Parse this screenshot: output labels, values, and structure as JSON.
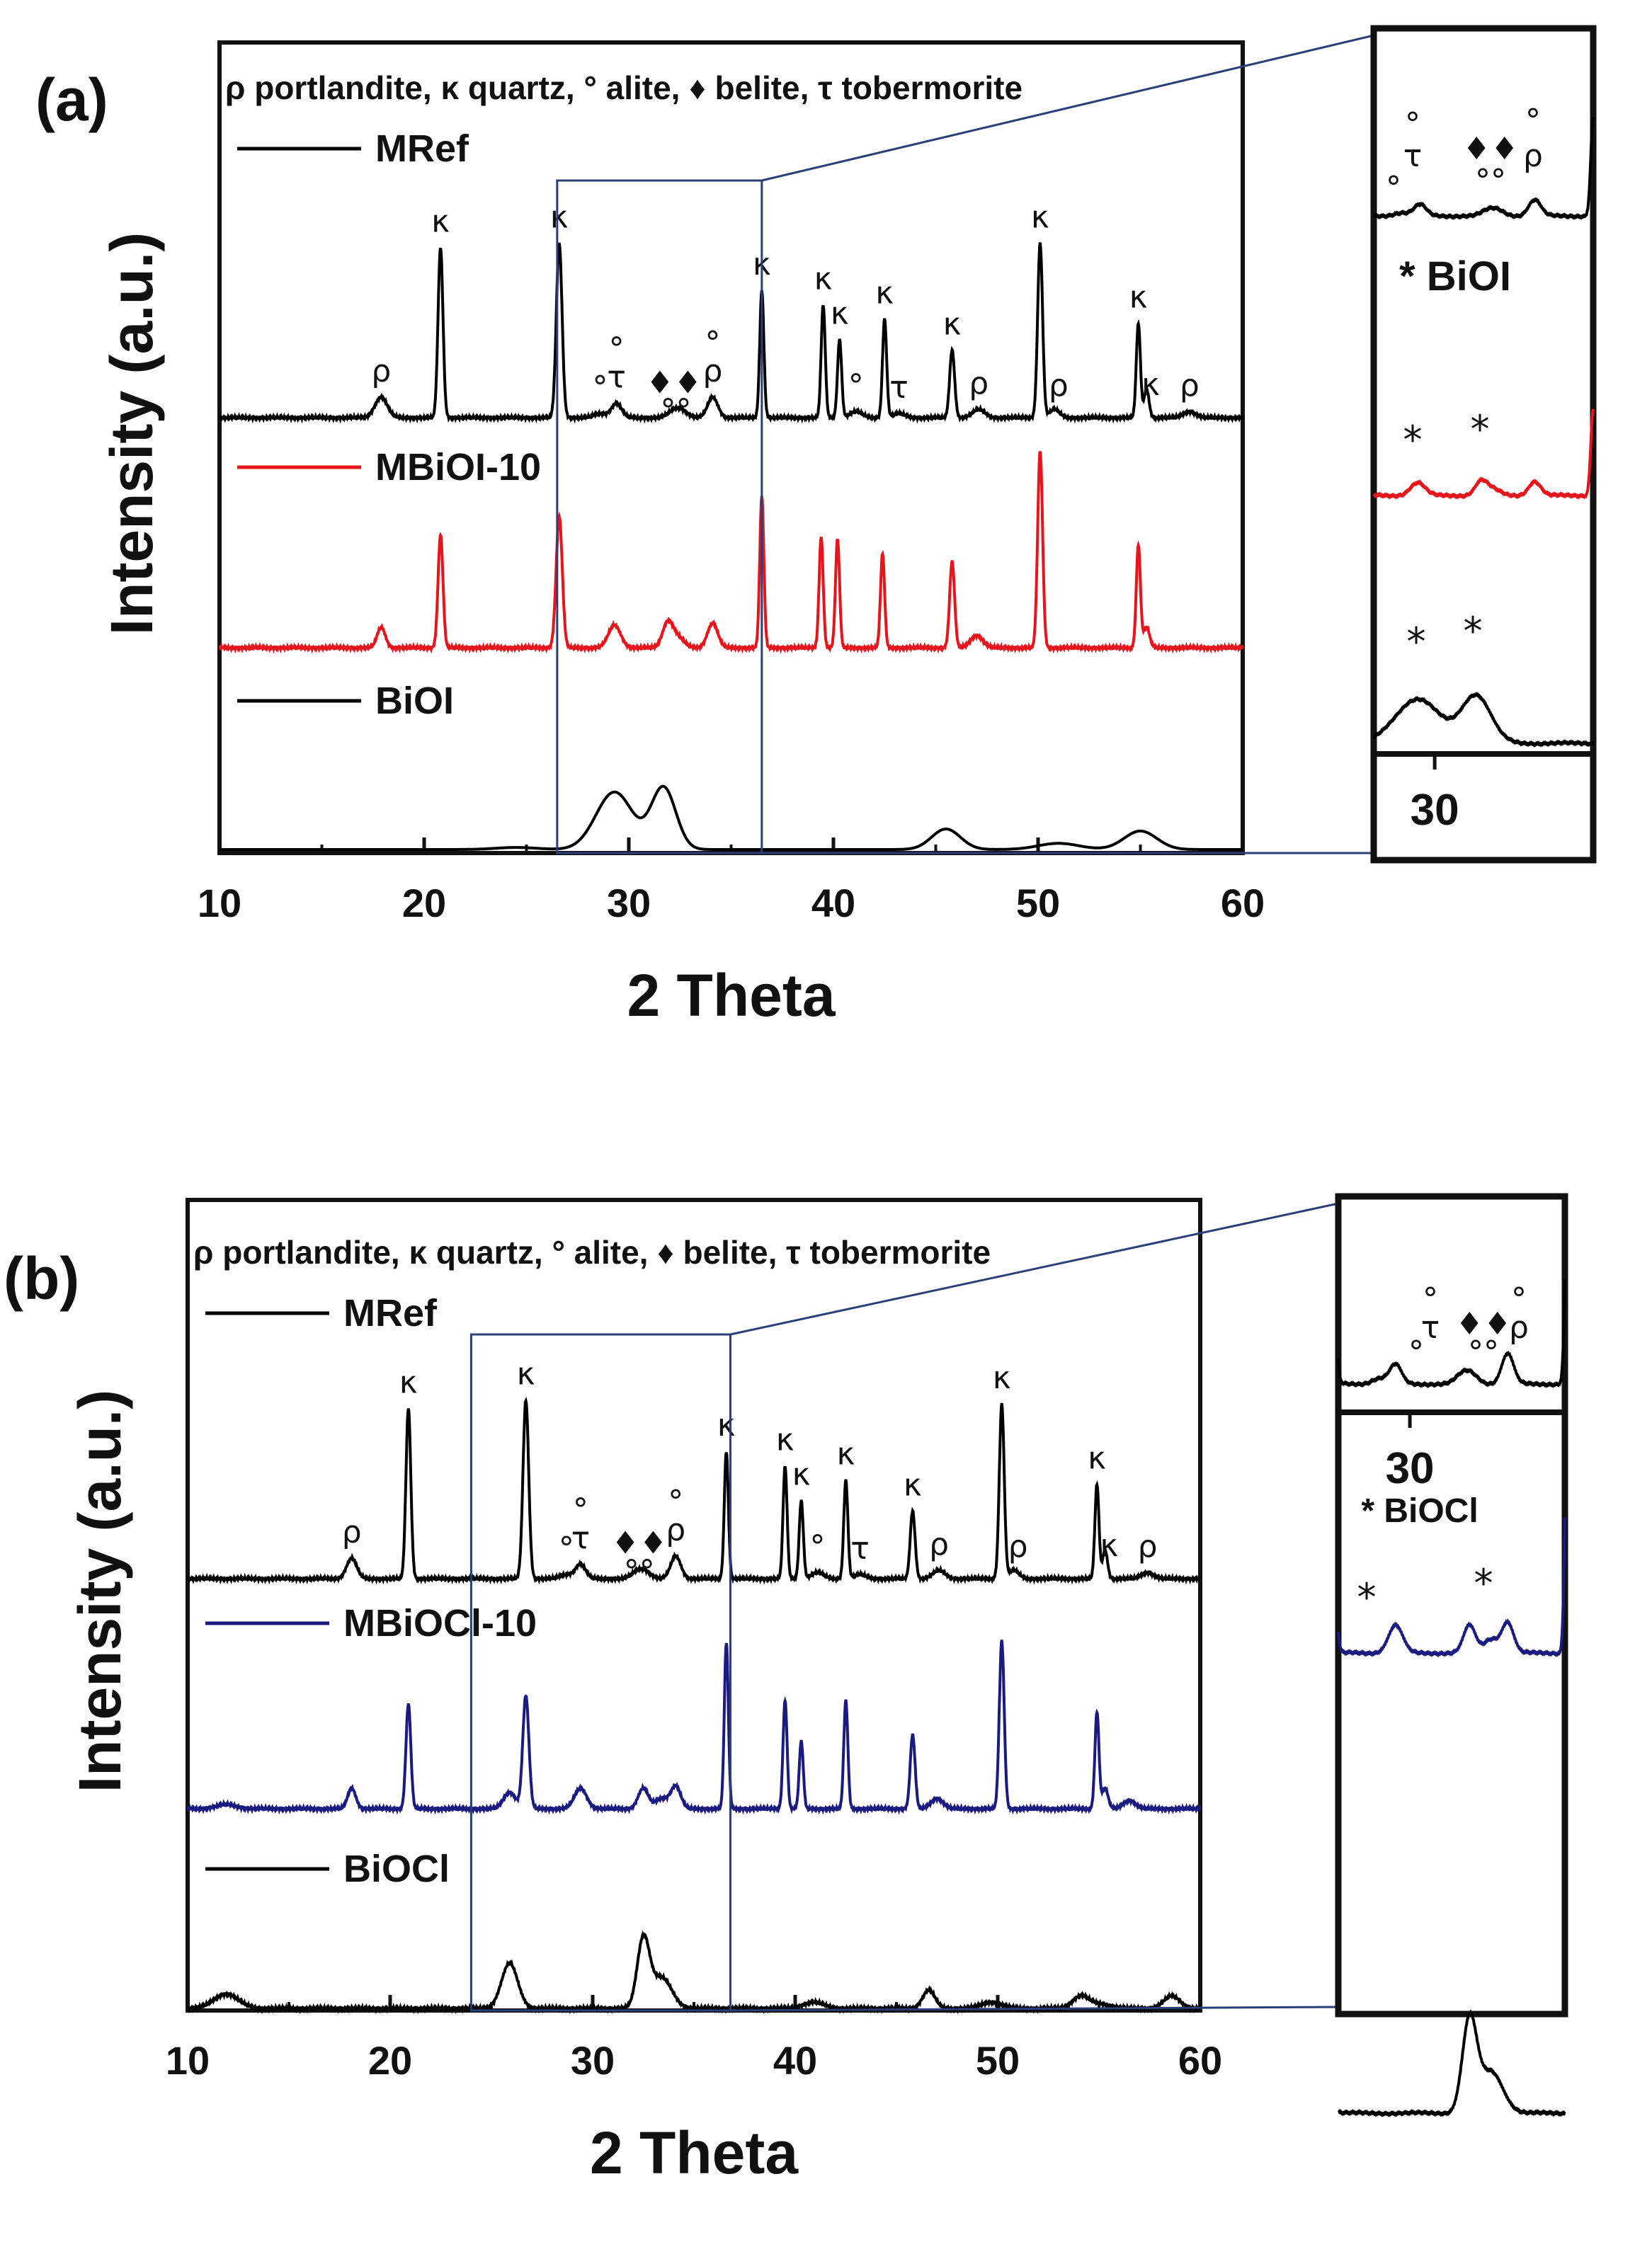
{
  "chart_data": [
    {
      "panel": "a",
      "panel_label": "(a)",
      "type": "line",
      "xlabel": "2 Theta",
      "ylabel": "Intensity (a.u.)",
      "xlim": [
        10,
        60
      ],
      "xticks": [
        10,
        20,
        30,
        40,
        50,
        60
      ],
      "phase_legend": "ρ portlandite, κ quartz, ° alite, ♦ belite, τ tobermorite",
      "zoom_window": [
        26.5,
        36.5
      ],
      "series": [
        {
          "name": "MRef",
          "color": "#000000",
          "peaks": [
            [
              17.9,
              0.1,
              0.3
            ],
            [
              20.8,
              0.83,
              0.12
            ],
            [
              26.6,
              0.85,
              0.14
            ],
            [
              28.6,
              0.02,
              0.3
            ],
            [
              29.4,
              0.07,
              0.25
            ],
            [
              32.2,
              0.03,
              0.3
            ],
            [
              32.6,
              0.03,
              0.3
            ],
            [
              34.1,
              0.1,
              0.25
            ],
            [
              36.5,
              0.62,
              0.1
            ],
            [
              39.5,
              0.55,
              0.1
            ],
            [
              40.3,
              0.38,
              0.1
            ],
            [
              41.1,
              0.03,
              0.3
            ],
            [
              42.5,
              0.48,
              0.1
            ],
            [
              43.2,
              0.02,
              0.3
            ],
            [
              45.8,
              0.33,
              0.12
            ],
            [
              47.1,
              0.04,
              0.3
            ],
            [
              50.1,
              0.85,
              0.12
            ],
            [
              50.8,
              0.04,
              0.25
            ],
            [
              54.9,
              0.46,
              0.1
            ],
            [
              55.3,
              0.14,
              0.12
            ],
            [
              57.4,
              0.03,
              0.3
            ]
          ]
        },
        {
          "name": "MBiOI-10",
          "color": "#e8141b",
          "peaks": [
            [
              17.9,
              0.1,
              0.2
            ],
            [
              20.8,
              0.55,
              0.12
            ],
            [
              26.6,
              0.64,
              0.15
            ],
            [
              29.3,
              0.11,
              0.3
            ],
            [
              31.9,
              0.12,
              0.25
            ],
            [
              32.4,
              0.05,
              0.3
            ],
            [
              34.1,
              0.12,
              0.25
            ],
            [
              36.5,
              0.74,
              0.1
            ],
            [
              39.4,
              0.54,
              0.1
            ],
            [
              40.2,
              0.53,
              0.1
            ],
            [
              42.4,
              0.46,
              0.1
            ],
            [
              45.8,
              0.42,
              0.12
            ],
            [
              47.0,
              0.06,
              0.3
            ],
            [
              50.1,
              0.96,
              0.12
            ],
            [
              54.9,
              0.5,
              0.1
            ],
            [
              55.3,
              0.1,
              0.15
            ]
          ]
        },
        {
          "name": "BiOI",
          "color": "#000000",
          "peaks": [
            [
              29.3,
              0.28,
              0.9
            ],
            [
              31.7,
              0.3,
              0.6
            ],
            [
              45.5,
              0.1,
              0.7
            ],
            [
              51.0,
              0.03,
              1.0
            ],
            [
              55.0,
              0.09,
              0.8
            ],
            [
              24.5,
              0.01,
              1.0
            ]
          ]
        }
      ],
      "inset": {
        "tick_label": "30",
        "annotation": "* BiOI",
        "markers_mref": [
          "°",
          "τ",
          "°",
          "♦♦",
          "°°",
          "°",
          "ρ"
        ],
        "markers_modified": [
          "*",
          "*"
        ],
        "markers_pure": [
          "*",
          "*"
        ]
      },
      "peak_labels": [
        {
          "x": 17.9,
          "s": "MRef",
          "t": "ρ"
        },
        {
          "x": 20.8,
          "s": "MRef",
          "t": "κ"
        },
        {
          "x": 26.6,
          "s": "MRef",
          "t": "κ"
        },
        {
          "x": 28.6,
          "s": "MRef",
          "t": "°"
        },
        {
          "x": 29.4,
          "s": "MRef",
          "t": "τ"
        },
        {
          "x": 29.4,
          "s": "MRef",
          "t": "°",
          "stack": 1
        },
        {
          "x": 32.2,
          "s": "MRef",
          "t": "♦♦"
        },
        {
          "x": 32.3,
          "s": "MRef",
          "t": "°°",
          "stack": -1
        },
        {
          "x": 34.1,
          "s": "MRef",
          "t": "ρ"
        },
        {
          "x": 34.1,
          "s": "MRef",
          "t": "°",
          "stack": 1
        },
        {
          "x": 36.5,
          "s": "MRef",
          "t": "κ"
        },
        {
          "x": 39.5,
          "s": "MRef",
          "t": "κ"
        },
        {
          "x": 40.3,
          "s": "MRef",
          "t": "κ"
        },
        {
          "x": 41.1,
          "s": "MRef",
          "t": "°"
        },
        {
          "x": 42.5,
          "s": "MRef",
          "t": "κ"
        },
        {
          "x": 43.2,
          "s": "MRef",
          "t": "τ"
        },
        {
          "x": 45.8,
          "s": "MRef",
          "t": "κ"
        },
        {
          "x": 47.1,
          "s": "MRef",
          "t": "ρ"
        },
        {
          "x": 50.1,
          "s": "MRef",
          "t": "κ"
        },
        {
          "x": 51.0,
          "s": "MRef",
          "t": "ρ"
        },
        {
          "x": 54.9,
          "s": "MRef",
          "t": "κ"
        },
        {
          "x": 55.5,
          "s": "MRef",
          "t": "κ"
        },
        {
          "x": 57.4,
          "s": "MRef",
          "t": "ρ"
        }
      ]
    },
    {
      "panel": "b",
      "panel_label": "(b)",
      "type": "line",
      "xlabel": "2 Theta",
      "ylabel": "Intensity (a.u.)",
      "xlim": [
        10,
        60
      ],
      "xticks": [
        10,
        20,
        30,
        40,
        50,
        60
      ],
      "phase_legend": "ρ portlandite, κ quartz, ° alite, ♦ belite, τ tobermorite",
      "zoom_window": [
        24,
        36.8
      ],
      "series": [
        {
          "name": "MRef",
          "color": "#000000",
          "peaks": [
            [
              18.1,
              0.1,
              0.25
            ],
            [
              20.9,
              0.83,
              0.12
            ],
            [
              26.7,
              0.87,
              0.14
            ],
            [
              28.7,
              0.02,
              0.3
            ],
            [
              29.4,
              0.07,
              0.25
            ],
            [
              32.2,
              0.03,
              0.3
            ],
            [
              32.6,
              0.03,
              0.3
            ],
            [
              34.1,
              0.11,
              0.25
            ],
            [
              36.6,
              0.62,
              0.1
            ],
            [
              39.5,
              0.55,
              0.1
            ],
            [
              40.3,
              0.38,
              0.1
            ],
            [
              41.1,
              0.03,
              0.3
            ],
            [
              42.5,
              0.48,
              0.1
            ],
            [
              43.2,
              0.02,
              0.3
            ],
            [
              45.8,
              0.33,
              0.12
            ],
            [
              47.1,
              0.04,
              0.3
            ],
            [
              50.2,
              0.85,
              0.12
            ],
            [
              50.8,
              0.04,
              0.25
            ],
            [
              54.9,
              0.46,
              0.1
            ],
            [
              55.3,
              0.14,
              0.12
            ],
            [
              57.4,
              0.03,
              0.3
            ]
          ]
        },
        {
          "name": "MBiOCl-10",
          "color": "#1a1a80",
          "peaks": [
            [
              11.9,
              0.02,
              0.5
            ],
            [
              18.1,
              0.1,
              0.2
            ],
            [
              20.9,
              0.51,
              0.12
            ],
            [
              25.9,
              0.08,
              0.3
            ],
            [
              26.7,
              0.55,
              0.15
            ],
            [
              29.4,
              0.1,
              0.3
            ],
            [
              32.5,
              0.1,
              0.25
            ],
            [
              33.4,
              0.05,
              0.3
            ],
            [
              34.1,
              0.11,
              0.25
            ],
            [
              36.6,
              0.81,
              0.1
            ],
            [
              39.5,
              0.53,
              0.1
            ],
            [
              40.3,
              0.33,
              0.1
            ],
            [
              42.5,
              0.53,
              0.1
            ],
            [
              45.8,
              0.36,
              0.12
            ],
            [
              47.0,
              0.05,
              0.3
            ],
            [
              50.2,
              0.82,
              0.12
            ],
            [
              54.9,
              0.47,
              0.1
            ],
            [
              55.3,
              0.1,
              0.15
            ],
            [
              56.5,
              0.04,
              0.3
            ]
          ]
        },
        {
          "name": "BiOCl",
          "color": "#000000",
          "peaks": [
            [
              11.9,
              0.07,
              0.6
            ],
            [
              25.9,
              0.22,
              0.4
            ],
            [
              32.5,
              0.33,
              0.3
            ],
            [
              33.4,
              0.15,
              0.5
            ],
            [
              40.9,
              0.03,
              0.5
            ],
            [
              46.6,
              0.09,
              0.3
            ],
            [
              49.7,
              0.03,
              0.5
            ],
            [
              54.1,
              0.06,
              0.4
            ],
            [
              55.1,
              0.02,
              0.5
            ],
            [
              58.6,
              0.06,
              0.4
            ]
          ]
        }
      ],
      "inset": {
        "tick_label": "30",
        "annotation": "* BiOCl",
        "markers_mref": [
          "°",
          "τ",
          "°",
          "♦♦",
          "°°",
          "°",
          "ρ"
        ],
        "markers_modified": [
          "*",
          "*"
        ],
        "markers_pure": []
      },
      "peak_labels": [
        {
          "x": 18.1,
          "s": "MRef",
          "t": "ρ"
        },
        {
          "x": 20.9,
          "s": "MRef",
          "t": "κ"
        },
        {
          "x": 26.7,
          "s": "MRef",
          "t": "κ"
        },
        {
          "x": 28.7,
          "s": "MRef",
          "t": "°"
        },
        {
          "x": 29.4,
          "s": "MRef",
          "t": "τ"
        },
        {
          "x": 29.4,
          "s": "MRef",
          "t": "°",
          "stack": 1
        },
        {
          "x": 32.3,
          "s": "MRef",
          "t": "♦♦"
        },
        {
          "x": 32.3,
          "s": "MRef",
          "t": "°°",
          "stack": -1
        },
        {
          "x": 34.1,
          "s": "MRef",
          "t": "ρ"
        },
        {
          "x": 34.1,
          "s": "MRef",
          "t": "°",
          "stack": 1
        },
        {
          "x": 36.6,
          "s": "MRef",
          "t": "κ"
        },
        {
          "x": 39.5,
          "s": "MRef",
          "t": "κ"
        },
        {
          "x": 40.3,
          "s": "MRef",
          "t": "κ"
        },
        {
          "x": 41.1,
          "s": "MRef",
          "t": "°"
        },
        {
          "x": 42.5,
          "s": "MRef",
          "t": "κ"
        },
        {
          "x": 43.2,
          "s": "MRef",
          "t": "τ"
        },
        {
          "x": 45.8,
          "s": "MRef",
          "t": "κ"
        },
        {
          "x": 47.1,
          "s": "MRef",
          "t": "ρ"
        },
        {
          "x": 50.2,
          "s": "MRef",
          "t": "κ"
        },
        {
          "x": 51.0,
          "s": "MRef",
          "t": "ρ"
        },
        {
          "x": 54.9,
          "s": "MRef",
          "t": "κ"
        },
        {
          "x": 55.5,
          "s": "MRef",
          "t": "κ"
        },
        {
          "x": 57.4,
          "s": "MRef",
          "t": "ρ"
        }
      ]
    }
  ]
}
